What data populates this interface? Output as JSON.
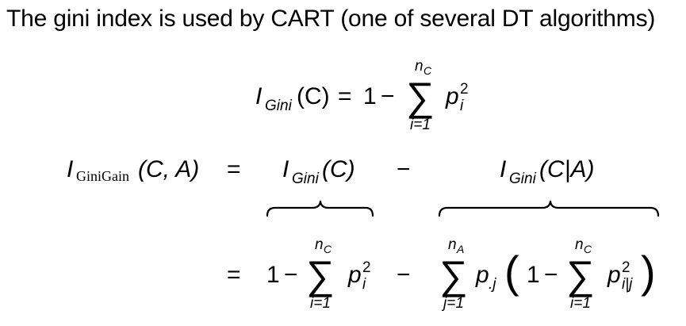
{
  "title": "The gini index is used by CART (one of several DT algorithms)",
  "eq1": {
    "lhs_I": "I",
    "lhs_sub": "Gini",
    "lhs_arg": "(C)",
    "equals": "=",
    "one": "1",
    "minus": "−",
    "sum": "∑",
    "sum_upper": "n",
    "sum_upper_sub": "C",
    "sum_lower": "i=1",
    "p": "p",
    "p_sub": "i",
    "p_sup": "2"
  },
  "eq2": {
    "lhs_I": "I",
    "lhs_sub": "GiniGain",
    "lhs_arg": "(C, A)",
    "equals": "=",
    "t1_I": "I",
    "t1_sub": "Gini",
    "t1_arg": "(C)",
    "minus": "−",
    "t2_I": "I",
    "t2_sub": "Gini",
    "t2_arg": "(C|A)"
  },
  "eq3": {
    "equals": "=",
    "one_a": "1",
    "minus_a": "−",
    "sum_a": "∑",
    "sum_a_upper": "n",
    "sum_a_upper_sub": "C",
    "sum_a_lower": "i=1",
    "p_a": "p",
    "p_a_sub": "i",
    "p_a_sup": "2",
    "minus_mid": "−",
    "sum_b": "∑",
    "sum_b_upper": "n",
    "sum_b_upper_sub": "A",
    "sum_b_lower": "j=1",
    "p_b": "p",
    "p_b_sub": ".j",
    "lparen": "(",
    "one_b": "1",
    "minus_b": "−",
    "sum_c": "∑",
    "sum_c_upper": "n",
    "sum_c_upper_sub": "C",
    "sum_c_lower": "i=1",
    "p_c": "p",
    "p_c_sub": "i|j",
    "p_c_sup": "2",
    "rparen": ")"
  }
}
